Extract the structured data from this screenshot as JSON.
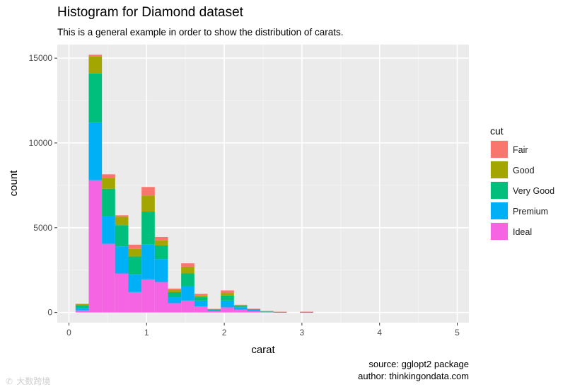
{
  "chart_data": {
    "type": "bar",
    "stacked": true,
    "title": "Histogram for Diamond dataset",
    "subtitle": "This is a general example in order to show the distribution of carats.",
    "xlabel": "carat",
    "ylabel": "count",
    "xlim": [
      -0.15,
      5.15
    ],
    "ylim": [
      -600,
      15800
    ],
    "xticks": [
      0,
      1,
      2,
      3,
      4,
      5
    ],
    "yticks": [
      0,
      5000,
      10000,
      15000
    ],
    "grid": true,
    "bin_width": 0.17,
    "legend": {
      "title": "cut",
      "position": "right"
    },
    "bins": [
      0.17,
      0.34,
      0.51,
      0.68,
      0.85,
      1.02,
      1.19,
      1.36,
      1.53,
      1.7,
      1.87,
      2.04,
      2.21,
      2.38,
      2.55,
      2.72,
      2.89,
      3.06
    ],
    "series": [
      {
        "name": "Ideal",
        "color": "#f564e3",
        "values": [
          120,
          7800,
          4050,
          2300,
          1200,
          1950,
          1800,
          550,
          700,
          350,
          80,
          300,
          160,
          70,
          30,
          10,
          0,
          5
        ]
      },
      {
        "name": "Premium",
        "color": "#00b0f6",
        "values": [
          150,
          3400,
          1650,
          1600,
          1050,
          2050,
          1350,
          350,
          850,
          350,
          50,
          400,
          150,
          80,
          30,
          15,
          0,
          25
        ]
      },
      {
        "name": "Very Good",
        "color": "#00bf7d",
        "values": [
          150,
          2900,
          1600,
          1250,
          1050,
          1950,
          800,
          300,
          750,
          200,
          40,
          300,
          80,
          40,
          10,
          5,
          0,
          5
        ]
      },
      {
        "name": "Good",
        "color": "#a3a500",
        "values": [
          80,
          1000,
          650,
          500,
          450,
          950,
          300,
          150,
          400,
          100,
          25,
          150,
          30,
          20,
          10,
          5,
          0,
          5
        ]
      },
      {
        "name": "Fair",
        "color": "#f8766d",
        "values": [
          10,
          100,
          200,
          80,
          250,
          500,
          200,
          60,
          200,
          100,
          15,
          150,
          30,
          10,
          5,
          5,
          0,
          5
        ]
      }
    ],
    "captions": [
      "source: gglopt2 package",
      "author: thinkingondata.com"
    ]
  },
  "watermark": "大数跨境"
}
